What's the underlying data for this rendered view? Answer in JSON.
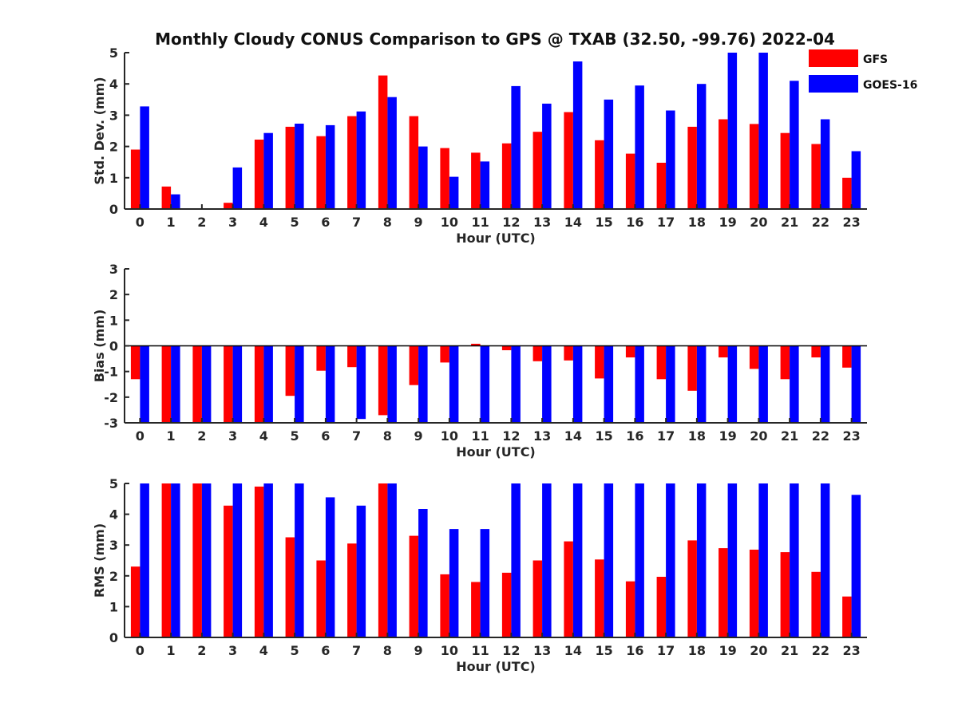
{
  "chart_data": {
    "type": "bar",
    "title": "Monthly Cloudy CONUS Comparison to GPS @ TXAB (32.50, -99.76) 2022-04",
    "legend": {
      "placement": "top-right",
      "entries": [
        "GFS",
        "GOES-16"
      ]
    },
    "colors": {
      "GFS": "#ff0000",
      "GOES-16": "#0000ff"
    },
    "categories": [
      "0",
      "1",
      "2",
      "3",
      "4",
      "5",
      "6",
      "7",
      "8",
      "9",
      "10",
      "11",
      "12",
      "13",
      "14",
      "15",
      "16",
      "17",
      "18",
      "19",
      "20",
      "21",
      "22",
      "23"
    ],
    "panels": [
      {
        "ylabel": "Std. Dev. (mm)",
        "xlabel": "Hour (UTC)",
        "ylim": [
          0,
          5
        ],
        "yticks": [
          "0",
          "1",
          "2",
          "3",
          "4",
          "5"
        ],
        "series": [
          {
            "name": "GFS",
            "values": [
              1.9,
              0.72,
              0.0,
              0.2,
              2.22,
              2.63,
              2.33,
              2.97,
              4.27,
              2.97,
              1.95,
              1.8,
              2.1,
              2.47,
              3.1,
              2.2,
              1.77,
              1.48,
              2.63,
              2.87,
              2.72,
              2.43,
              2.08,
              1.0
            ]
          },
          {
            "name": "GOES-16",
            "values": [
              3.28,
              0.47,
              0.0,
              1.33,
              2.43,
              2.73,
              2.68,
              3.12,
              3.58,
              2.0,
              1.03,
              1.52,
              3.93,
              3.37,
              4.72,
              3.5,
              3.95,
              3.15,
              4.0,
              5.0,
              5.0,
              4.1,
              2.87,
              1.85
            ]
          }
        ]
      },
      {
        "ylabel": "Bias (mm)",
        "xlabel": "Hour (UTC)",
        "ylim": [
          -3,
          3
        ],
        "yticks": [
          "-3",
          "-2",
          "-1",
          "0",
          "1",
          "2",
          "3"
        ],
        "series": [
          {
            "name": "GFS",
            "values": [
              -1.3,
              -3.0,
              -3.0,
              -3.0,
              -3.0,
              -1.95,
              -0.97,
              -0.83,
              -2.7,
              -1.53,
              -0.65,
              0.08,
              -0.17,
              -0.6,
              -0.57,
              -1.27,
              -0.45,
              -1.3,
              -1.75,
              -0.45,
              -0.9,
              -1.3,
              -0.45,
              -0.85
            ]
          },
          {
            "name": "GOES-16",
            "values": [
              -3.0,
              -3.0,
              -3.0,
              -3.0,
              -3.0,
              -3.0,
              -3.0,
              -2.85,
              -3.0,
              -3.0,
              -3.0,
              -3.0,
              -3.0,
              -3.0,
              -3.0,
              -3.0,
              -3.0,
              -3.0,
              -3.0,
              -3.0,
              -3.0,
              -3.0,
              -3.0,
              -3.0
            ]
          }
        ]
      },
      {
        "ylabel": "RMS (mm)",
        "xlabel": "Hour (UTC)",
        "ylim": [
          0,
          5
        ],
        "yticks": [
          "0",
          "1",
          "2",
          "3",
          "4",
          "5"
        ],
        "series": [
          {
            "name": "GFS",
            "values": [
              2.3,
              5.0,
              5.0,
              4.28,
              4.9,
              3.25,
              2.5,
              3.05,
              5.0,
              3.3,
              2.05,
              1.8,
              2.1,
              2.5,
              3.12,
              2.53,
              1.82,
              1.97,
              3.15,
              2.9,
              2.85,
              2.77,
              2.13,
              1.33
            ]
          },
          {
            "name": "GOES-16",
            "values": [
              5.0,
              5.0,
              5.0,
              5.0,
              5.0,
              5.0,
              4.55,
              4.28,
              5.0,
              4.17,
              3.52,
              3.52,
              5.0,
              5.0,
              5.0,
              5.0,
              5.0,
              5.0,
              5.0,
              5.0,
              5.0,
              5.0,
              5.0,
              4.63
            ]
          }
        ]
      }
    ]
  }
}
